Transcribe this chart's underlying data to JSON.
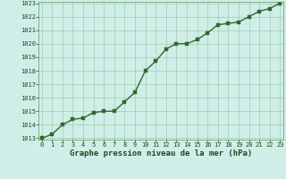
{
  "x": [
    0,
    1,
    2,
    3,
    4,
    5,
    6,
    7,
    8,
    9,
    10,
    11,
    12,
    13,
    14,
    15,
    16,
    17,
    18,
    19,
    20,
    21,
    22,
    23
  ],
  "y": [
    1013.0,
    1013.3,
    1014.0,
    1014.4,
    1014.5,
    1014.9,
    1015.0,
    1015.0,
    1015.7,
    1016.4,
    1018.0,
    1018.7,
    1019.6,
    1020.0,
    1020.0,
    1020.3,
    1020.8,
    1021.4,
    1021.5,
    1021.6,
    1022.0,
    1022.4,
    1022.6,
    1023.0
  ],
  "line_color": "#2d6a2d",
  "marker_color": "#2d6a2d",
  "bg_color": "#d0eee8",
  "grid_color": "#5a9a5a",
  "xlabel": "Graphe pression niveau de la mer (hPa)",
  "ylim_min": 1013,
  "ylim_max": 1023,
  "xlim_min": 0,
  "xlim_max": 23,
  "yticks": [
    1013,
    1014,
    1015,
    1016,
    1017,
    1018,
    1019,
    1020,
    1021,
    1022,
    1023
  ],
  "xticks": [
    0,
    1,
    2,
    3,
    4,
    5,
    6,
    7,
    8,
    9,
    10,
    11,
    12,
    13,
    14,
    15,
    16,
    17,
    18,
    19,
    20,
    21,
    22,
    23
  ],
  "xlabel_fontsize": 6.5,
  "tick_fontsize": 5.0,
  "xlabel_color": "#1a4a1a",
  "tick_color": "#1a4a1a",
  "linewidth": 1.0,
  "markersize": 2.2
}
